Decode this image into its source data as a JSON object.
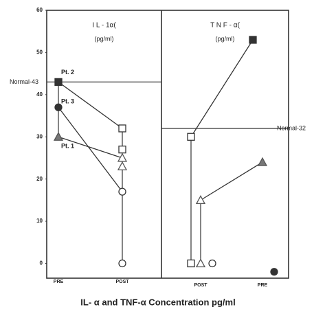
{
  "caption": "IL- α and TNF-α  Concentration pg/ml",
  "chart_data": [
    {
      "type": "line",
      "title": "I L - 1α(",
      "subtitle": "(pg/ml)",
      "categories": [
        "PRE",
        "POST"
      ],
      "ylim": [
        -3.5,
        60
      ],
      "yticks": [
        0,
        10,
        20,
        30,
        40,
        50,
        60
      ],
      "normal": {
        "value": 43,
        "label": "Normal-43"
      },
      "series": [
        {
          "name": "Pt. 2",
          "marker": "square",
          "color": "#333333",
          "filled": [
            true,
            false
          ],
          "values": [
            43,
            32
          ]
        },
        {
          "name": "Pt. 3",
          "marker": "circle",
          "color": "#333333",
          "filled": [
            true,
            false
          ],
          "values": [
            37,
            17
          ]
        },
        {
          "name": "Pt. 1",
          "marker": "triangle",
          "color": "#555555",
          "filled": [
            true,
            false
          ],
          "values": [
            30,
            25
          ]
        },
        {
          "marker": "square",
          "color": "#333333",
          "filled": [
            false,
            false
          ],
          "values": [
            null,
            27
          ]
        },
        {
          "marker": "triangle",
          "color": "#555555",
          "filled": [
            false,
            false
          ],
          "values": [
            null,
            23
          ]
        },
        {
          "marker": "circle",
          "color": "#333333",
          "filled": [
            false,
            false
          ],
          "values": [
            null,
            0
          ]
        }
      ]
    },
    {
      "type": "line",
      "title": "T N F - α(",
      "subtitle": "(pg/ml)",
      "categories": [
        "POST",
        "PRE"
      ],
      "ylim": [
        -3.5,
        60
      ],
      "normal": {
        "value": 32,
        "label": "Normal-32"
      },
      "series": [
        {
          "marker": "square",
          "color": "#333333",
          "filled": [
            false,
            true
          ],
          "values": [
            30,
            53
          ]
        },
        {
          "marker": "triangle",
          "color": "#555555",
          "filled": [
            false,
            true
          ],
          "values": [
            15,
            24
          ]
        },
        {
          "marker": "square",
          "color": "#333333",
          "filled": [
            false,
            false
          ],
          "values": [
            0,
            null
          ]
        },
        {
          "marker": "triangle",
          "color": "#555555",
          "filled": [
            false,
            false
          ],
          "values": [
            0,
            null
          ]
        },
        {
          "marker": "circle",
          "color": "#333333",
          "filled": [
            false,
            false
          ],
          "values": [
            0,
            null
          ]
        },
        {
          "marker": "circle",
          "color": "#333333",
          "filled": [
            true,
            true
          ],
          "values": [
            null,
            -2
          ]
        }
      ]
    }
  ]
}
